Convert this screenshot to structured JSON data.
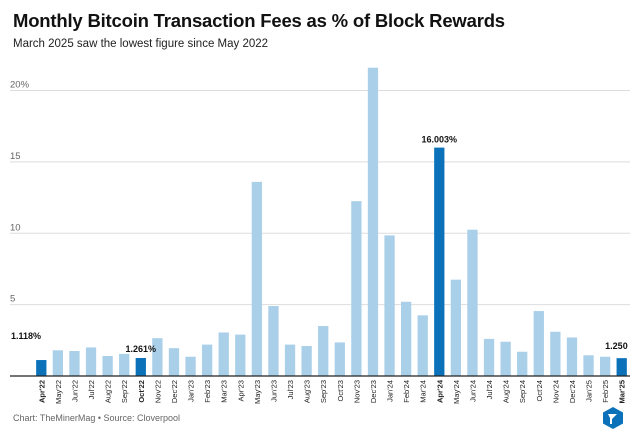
{
  "title": "Monthly Bitcoin Transaction Fees as % of Block Rewards",
  "subtitle": "March 2025 saw the lowest figure since May 2022",
  "footer": "Chart: TheMinerMag • Source: Cloverpool",
  "colors": {
    "bar": "#a9cfe9",
    "highlight": "#0b72b9",
    "grid": "#dddddd",
    "axis": "#222222"
  },
  "logo_icon": "theminermag-logo-icon",
  "chart_data": {
    "type": "bar",
    "title": "Monthly Bitcoin Transaction Fees as % of Block Rewards",
    "xlabel": "",
    "ylabel": "",
    "ylim": [
      0,
      22
    ],
    "yticks": [
      "0",
      "5",
      "10",
      "15",
      "20%"
    ],
    "ytick_values": [
      0,
      5,
      10,
      15,
      20
    ],
    "grid": true,
    "categories": [
      "Apr'22",
      "May'22",
      "Jun'22",
      "Jul'22",
      "Aug'22",
      "Sep'22",
      "Oct'22",
      "Nov'22",
      "Dec'22",
      "Jan'23",
      "Feb'23",
      "Mar'23",
      "Apr'23",
      "May'23",
      "Jun'23",
      "Jul'23",
      "Aug'23",
      "Sep'23",
      "Oct'23",
      "Nov'23",
      "Dec'23",
      "Jan'24",
      "Feb'24",
      "Mar'24",
      "Apr'24",
      "May'24",
      "Jun'24",
      "Jul'24",
      "Aug'24",
      "Sep'24",
      "Oct'24",
      "Nov'24",
      "Dec'24",
      "Jan'25",
      "Feb'25",
      "Mar'25"
    ],
    "values": [
      1.118,
      1.8,
      1.75,
      2.0,
      1.4,
      1.55,
      1.261,
      2.65,
      1.95,
      1.35,
      2.2,
      3.05,
      2.9,
      13.6,
      4.9,
      2.2,
      2.1,
      3.5,
      2.35,
      12.25,
      21.6,
      9.85,
      5.2,
      4.25,
      16.003,
      6.75,
      10.25,
      2.6,
      2.4,
      1.7,
      4.55,
      3.1,
      2.7,
      1.45,
      1.35,
      1.25
    ],
    "highlighted": [
      0,
      6,
      24,
      35
    ],
    "data_labels": [
      {
        "index": 0,
        "text": "1.118%"
      },
      {
        "index": 6,
        "text": "1.261%"
      },
      {
        "index": 24,
        "text": "16.003%"
      },
      {
        "index": 35,
        "text": "1.250"
      }
    ]
  }
}
